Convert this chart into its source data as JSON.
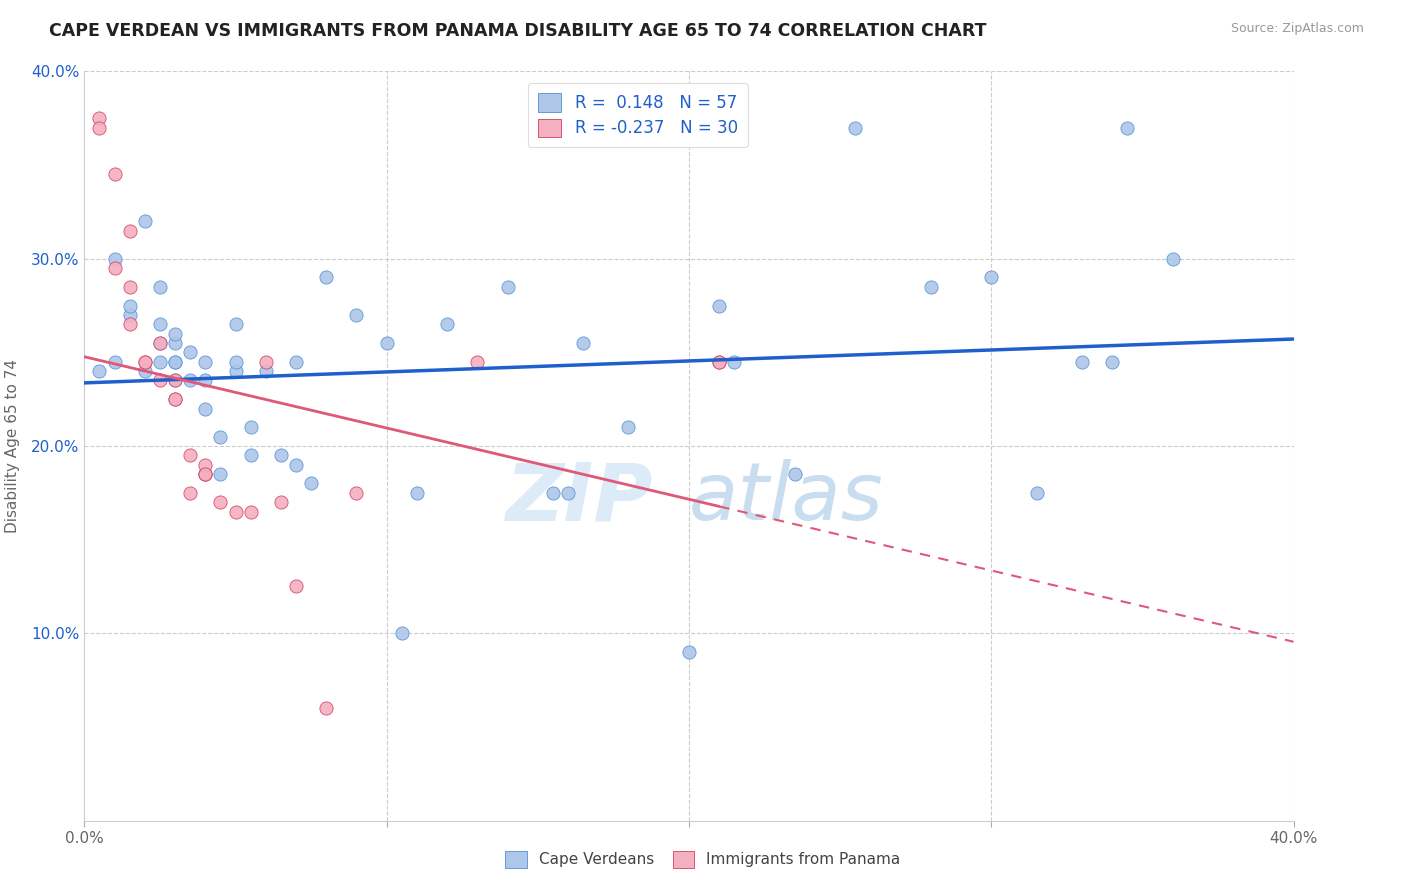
{
  "title": "CAPE VERDEAN VS IMMIGRANTS FROM PANAMA DISABILITY AGE 65 TO 74 CORRELATION CHART",
  "source": "Source: ZipAtlas.com",
  "ylabel": "Disability Age 65 to 74",
  "xmin": 0.0,
  "xmax": 0.4,
  "ymin": 0.0,
  "ymax": 0.4,
  "blue_R": "0.148",
  "blue_N": "57",
  "pink_R": "-0.237",
  "pink_N": "30",
  "blue_color": "#aec6e8",
  "pink_color": "#f4afc0",
  "blue_line_color": "#2060cc",
  "pink_line_color": "#e05878",
  "blue_edge_color": "#5090d8",
  "pink_edge_color": "#d04060",
  "legend_label_blue": "Cape Verdeans",
  "legend_label_pink": "Immigrants from Panama",
  "watermark_zip": "ZIP",
  "watermark_atlas": "atlas",
  "blue_scatter_x": [
    0.005,
    0.01,
    0.01,
    0.015,
    0.015,
    0.02,
    0.02,
    0.025,
    0.025,
    0.025,
    0.025,
    0.03,
    0.03,
    0.03,
    0.03,
    0.03,
    0.035,
    0.035,
    0.04,
    0.04,
    0.04,
    0.04,
    0.045,
    0.045,
    0.05,
    0.05,
    0.05,
    0.055,
    0.055,
    0.06,
    0.065,
    0.07,
    0.07,
    0.075,
    0.08,
    0.09,
    0.1,
    0.105,
    0.11,
    0.12,
    0.14,
    0.155,
    0.16,
    0.165,
    0.18,
    0.2,
    0.21,
    0.215,
    0.235,
    0.255,
    0.28,
    0.3,
    0.315,
    0.33,
    0.34,
    0.345,
    0.36
  ],
  "blue_scatter_y": [
    0.24,
    0.245,
    0.3,
    0.27,
    0.275,
    0.24,
    0.32,
    0.245,
    0.255,
    0.265,
    0.285,
    0.235,
    0.245,
    0.245,
    0.255,
    0.26,
    0.235,
    0.25,
    0.185,
    0.22,
    0.235,
    0.245,
    0.185,
    0.205,
    0.24,
    0.245,
    0.265,
    0.195,
    0.21,
    0.24,
    0.195,
    0.19,
    0.245,
    0.18,
    0.29,
    0.27,
    0.255,
    0.1,
    0.175,
    0.265,
    0.285,
    0.175,
    0.175,
    0.255,
    0.21,
    0.09,
    0.275,
    0.245,
    0.185,
    0.37,
    0.285,
    0.29,
    0.175,
    0.245,
    0.245,
    0.37,
    0.3
  ],
  "pink_scatter_x": [
    0.005,
    0.005,
    0.01,
    0.01,
    0.015,
    0.015,
    0.015,
    0.02,
    0.02,
    0.025,
    0.025,
    0.03,
    0.03,
    0.03,
    0.035,
    0.035,
    0.04,
    0.04,
    0.04,
    0.045,
    0.05,
    0.055,
    0.06,
    0.065,
    0.07,
    0.08,
    0.09,
    0.13,
    0.21,
    0.21
  ],
  "pink_scatter_y": [
    0.375,
    0.37,
    0.295,
    0.345,
    0.265,
    0.285,
    0.315,
    0.245,
    0.245,
    0.235,
    0.255,
    0.225,
    0.225,
    0.235,
    0.195,
    0.175,
    0.185,
    0.19,
    0.185,
    0.17,
    0.165,
    0.165,
    0.245,
    0.17,
    0.125,
    0.06,
    0.175,
    0.245,
    0.245,
    0.245
  ]
}
